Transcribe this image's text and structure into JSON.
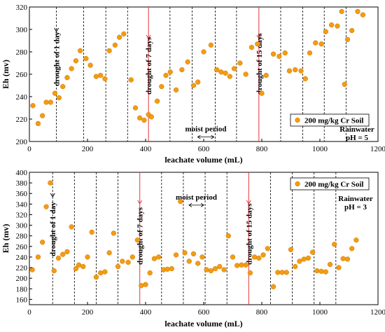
{
  "chart_data": [
    {
      "type": "scatter",
      "xlabel": "leachate volume (mL)",
      "ylabel": "Eh (mv)",
      "xlim": [
        0,
        1200
      ],
      "ylim": [
        200,
        320
      ],
      "xticks": [
        0,
        200,
        400,
        600,
        800,
        1000,
        1200
      ],
      "yticks": [
        200,
        220,
        240,
        260,
        280,
        300,
        320
      ],
      "legend": {
        "label": "200 mg/kg Cr Soil",
        "placement": "lower-right"
      },
      "condition": {
        "line1": "Rainwater",
        "line2": "pH = 5"
      },
      "marker_color": "#f39c12",
      "vline_color": "#000000",
      "event_color": "#e8323c",
      "dashed_lines_x": [
        93,
        187,
        263,
        338,
        484,
        560,
        640,
        713,
        865,
        941,
        1015,
        1090
      ],
      "event_lines": [
        {
          "x": 410,
          "label": "drought of 7 days"
        },
        {
          "x": 790,
          "label": "drought of 15 days"
        }
      ],
      "drought1": {
        "x": 93,
        "label": "drought of 1 day"
      },
      "moist_period": {
        "label": "moist period",
        "x_start": 560,
        "x_end": 640,
        "y": 204
      },
      "series": [
        {
          "name": "200 mg/kg Cr Soil",
          "x": [
            12,
            30,
            45,
            58,
            73,
            88,
            102,
            115,
            130,
            145,
            160,
            175,
            195,
            210,
            230,
            245,
            260,
            275,
            295,
            310,
            325,
            350,
            365,
            380,
            395,
            410,
            420,
            440,
            455,
            470,
            485,
            505,
            525,
            545,
            565,
            580,
            600,
            625,
            645,
            660,
            675,
            690,
            705,
            725,
            745,
            765,
            785,
            800,
            815,
            840,
            860,
            880,
            895,
            915,
            935,
            950,
            965,
            985,
            1005,
            1020,
            1040,
            1060,
            1075,
            1085,
            1095,
            1110,
            1130,
            1148
          ],
          "y": [
            232,
            216,
            223,
            235,
            235,
            243,
            239,
            249,
            257,
            265,
            272,
            281,
            274,
            268,
            258,
            259,
            256,
            281,
            286,
            293,
            296,
            255,
            230,
            221,
            219,
            224,
            222,
            236,
            249,
            259,
            262,
            246,
            264,
            271,
            250,
            253,
            280,
            286,
            264,
            262,
            261,
            258,
            265,
            270,
            260,
            284,
            287,
            243,
            259,
            278,
            276,
            279,
            263,
            264,
            263,
            256,
            279,
            288,
            287,
            298,
            304,
            303,
            316,
            251,
            291,
            299,
            316,
            313
          ]
        }
      ]
    },
    {
      "type": "scatter",
      "xlabel": "leachate volume (mL)",
      "ylabel": "Eh (mv)",
      "xlim": [
        0,
        1200
      ],
      "ylim": [
        150,
        400
      ],
      "xticks": [
        0,
        200,
        400,
        600,
        800,
        1000,
        1200
      ],
      "yticks": [
        160,
        180,
        200,
        220,
        240,
        260,
        280,
        300,
        320,
        340,
        360,
        380,
        400
      ],
      "legend": {
        "label": "200 mg/kg Cr Soil",
        "placement": "top-right"
      },
      "condition": {
        "line1": "Rainwater",
        "line2": "pH = 3"
      },
      "marker_color": "#f39c12",
      "vline_color": "#000000",
      "event_color": "#e8323c",
      "dashed_lines_x": [
        80,
        155,
        230,
        305,
        455,
        530,
        605,
        680,
        830,
        905,
        980,
        1055
      ],
      "event_lines": [
        {
          "x": 380,
          "label": "drought of 7 days"
        },
        {
          "x": 755,
          "label": "drought of 15 days"
        }
      ],
      "drought1": {
        "x": 80,
        "label": "drought of 1 day"
      },
      "moist_period": {
        "label": "moist period",
        "x_start": 530,
        "x_end": 605,
        "y": 338
      },
      "series": [
        {
          "name": "200 mg/kg Cr Soil",
          "x": [
            10,
            30,
            45,
            58,
            72,
            85,
            100,
            115,
            130,
            145,
            160,
            170,
            185,
            200,
            215,
            230,
            245,
            260,
            275,
            290,
            305,
            320,
            340,
            355,
            372,
            385,
            400,
            415,
            430,
            445,
            462,
            475,
            490,
            505,
            520,
            535,
            550,
            565,
            580,
            595,
            610,
            625,
            640,
            655,
            670,
            685,
            700,
            715,
            730,
            745,
            760,
            775,
            790,
            805,
            820,
            840,
            855,
            870,
            885,
            900,
            915,
            930,
            945,
            960,
            975,
            990,
            1005,
            1020,
            1035,
            1050,
            1065,
            1080,
            1095,
            1110,
            1125
          ],
          "y": [
            216,
            240,
            268,
            335,
            380,
            214,
            238,
            245,
            250,
            297,
            218,
            225,
            222,
            240,
            287,
            202,
            210,
            212,
            248,
            285,
            222,
            232,
            230,
            240,
            272,
            186,
            188,
            210,
            237,
            240,
            216,
            217,
            218,
            244,
            345,
            248,
            232,
            246,
            228,
            240,
            216,
            214,
            218,
            222,
            216,
            280,
            240,
            224,
            225,
            225,
            210,
            240,
            238,
            244,
            256,
            184,
            211,
            211,
            211,
            254,
            222,
            232,
            236,
            238,
            249,
            214,
            213,
            212,
            226,
            264,
            220,
            237,
            236,
            256,
            272
          ]
        }
      ]
    }
  ]
}
